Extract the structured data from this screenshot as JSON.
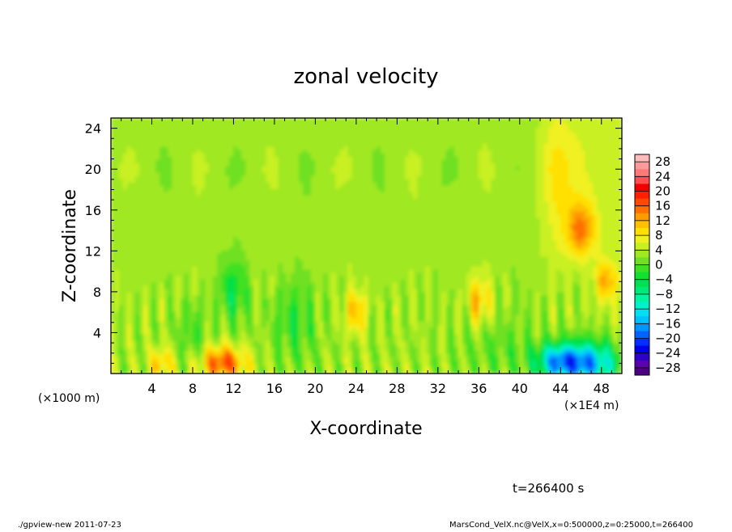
{
  "chart_data": {
    "type": "heatmap",
    "title": "zonal velocity",
    "xlabel": "X-coordinate",
    "ylabel": "Z-coordinate",
    "x_unit": "(×1E4 m)",
    "y_unit": "(×1000 m)",
    "xlim": [
      0,
      50
    ],
    "ylim": [
      0,
      25
    ],
    "x_ticks": [
      "4",
      "8",
      "12",
      "16",
      "20",
      "24",
      "28",
      "32",
      "36",
      "40",
      "44",
      "48"
    ],
    "y_ticks": [
      "4",
      "8",
      "12",
      "16",
      "20",
      "24"
    ],
    "colorbar": {
      "labels": [
        "28",
        "24",
        "20",
        "16",
        "12",
        "8",
        "4",
        "0",
        "−4",
        "−8",
        "−12",
        "−16",
        "−20",
        "−24",
        "−28"
      ],
      "range": [
        -30,
        30
      ],
      "step": 2,
      "colors": [
        "#4b0082",
        "#5a00b0",
        "#2e00c8",
        "#0000e6",
        "#0030ff",
        "#0064ff",
        "#0096ff",
        "#00c0ff",
        "#00e0f0",
        "#00f0c8",
        "#00f5a0",
        "#00e878",
        "#00e050",
        "#10e030",
        "#40e020",
        "#70e020",
        "#a0e820",
        "#c8f020",
        "#f0f020",
        "#ffe000",
        "#ffc000",
        "#ff9a00",
        "#ff7000",
        "#ff4800",
        "#ff2000",
        "#f00000",
        "#ff5050",
        "#ff7878",
        "#ff9a9a",
        "#ffbcbc"
      ]
    },
    "time": "t=266400 s"
  },
  "footer": {
    "left": "./gpview-new   2011-07-23",
    "right": "MarsCond_VelX.nc@VelX,x=0:500000,z=0:25000,t=266400"
  }
}
